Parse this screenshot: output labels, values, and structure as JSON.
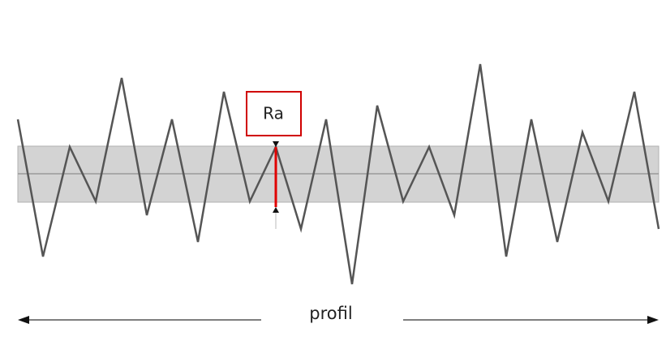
{
  "labels": {
    "ra": "Ra",
    "profile": "profil"
  }
}
